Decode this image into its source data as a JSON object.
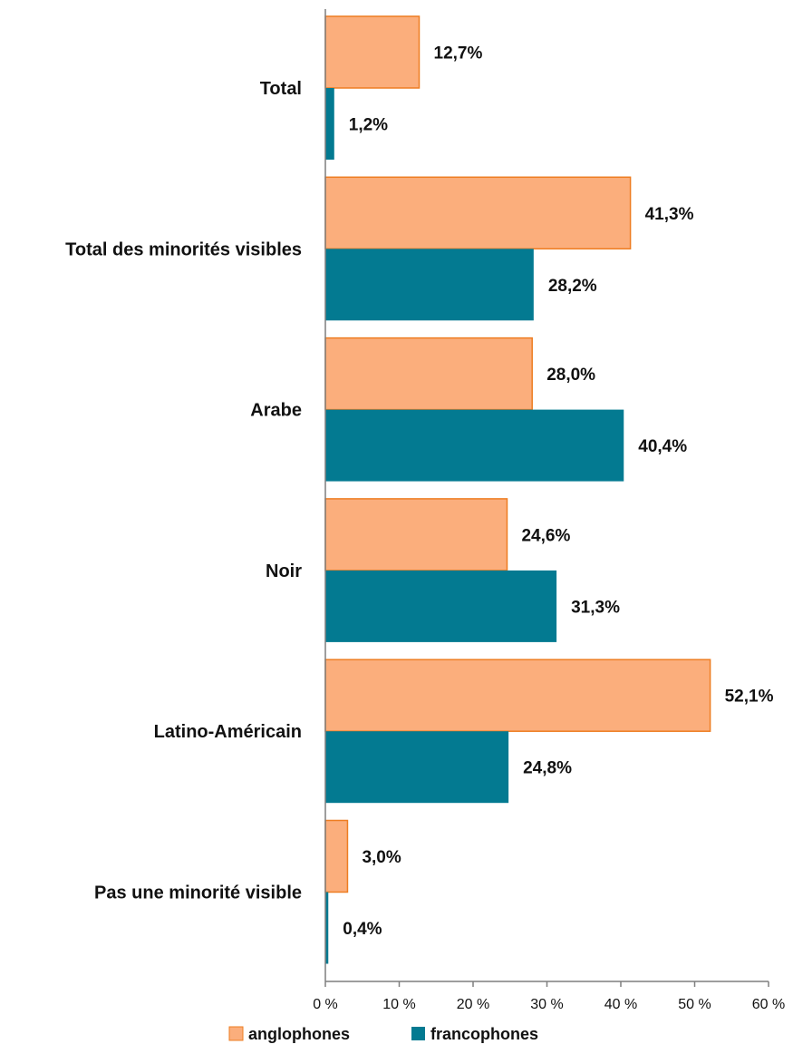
{
  "chart_data": {
    "type": "bar",
    "orientation": "horizontal",
    "categories": [
      "Total",
      "Total des minorités visibles",
      "Arabe",
      "Noir",
      "Latino-Américain",
      "Pas une minorité visible"
    ],
    "series": [
      {
        "name": "anglophones",
        "color": "#FBAE7C",
        "values": [
          12.7,
          41.3,
          28.0,
          24.6,
          52.1,
          3.0
        ],
        "labels": [
          "12,7%",
          "41,3%",
          "28,0%",
          "24,6%",
          "52,1%",
          "3,0%"
        ]
      },
      {
        "name": "francophones",
        "color": "#037A91",
        "values": [
          1.2,
          28.2,
          40.4,
          31.3,
          24.8,
          0.4
        ],
        "labels": [
          "1,2%",
          "28,2%",
          "40,4%",
          "31,3%",
          "24,8%",
          "0,4%"
        ]
      }
    ],
    "xlim": [
      0,
      60
    ],
    "xticks": [
      0,
      10,
      20,
      30,
      40,
      50,
      60
    ],
    "xtick_labels": [
      "0 %",
      "10 %",
      "20 %",
      "30 %",
      "40 %",
      "50 %",
      "60 %"
    ],
    "title": "",
    "xlabel": "",
    "ylabel": "",
    "grid": false,
    "legend_position": "bottom"
  }
}
